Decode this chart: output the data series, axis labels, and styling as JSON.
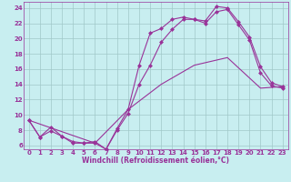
{
  "title": "Windchill (Refroidissement éolien,°C)",
  "bg_color": "#c8eef0",
  "grid_color": "#a0c8c8",
  "line_color": "#993399",
  "xlim": [
    -0.5,
    23.5
  ],
  "ylim": [
    5.5,
    24.8
  ],
  "xticks": [
    0,
    1,
    2,
    3,
    4,
    5,
    6,
    7,
    8,
    9,
    10,
    11,
    12,
    13,
    14,
    15,
    16,
    17,
    18,
    19,
    20,
    21,
    22,
    23
  ],
  "yticks": [
    6,
    8,
    10,
    12,
    14,
    16,
    18,
    20,
    22,
    24
  ],
  "line1_x": [
    0,
    1,
    2,
    3,
    4,
    5,
    6,
    7,
    8,
    9,
    10,
    11,
    12,
    13,
    14,
    15,
    16,
    17,
    18,
    19,
    20,
    21,
    22,
    23
  ],
  "line1_y": [
    9.3,
    7.1,
    8.4,
    7.2,
    6.3,
    6.3,
    6.5,
    5.5,
    8.2,
    10.7,
    16.5,
    20.7,
    21.3,
    22.5,
    22.8,
    22.5,
    22.3,
    24.2,
    24.0,
    22.2,
    20.2,
    16.3,
    14.2,
    13.7
  ],
  "line2_x": [
    0,
    1,
    2,
    3,
    4,
    5,
    6,
    7,
    8,
    9,
    10,
    11,
    12,
    13,
    14,
    15,
    16,
    17,
    18,
    19,
    20,
    21,
    22,
    23
  ],
  "line2_y": [
    9.3,
    7.1,
    7.9,
    7.2,
    6.5,
    6.3,
    6.3,
    5.5,
    8.0,
    10.2,
    14.0,
    16.5,
    19.5,
    21.2,
    22.5,
    22.5,
    22.0,
    23.5,
    23.8,
    21.8,
    19.8,
    15.5,
    13.8,
    13.5
  ],
  "line3_x": [
    0,
    6,
    9,
    12,
    15,
    18,
    21,
    23
  ],
  "line3_y": [
    9.3,
    6.3,
    10.7,
    14.0,
    16.5,
    17.5,
    13.5,
    13.7
  ],
  "tick_fontsize": 5.0,
  "xlabel_fontsize": 5.5
}
